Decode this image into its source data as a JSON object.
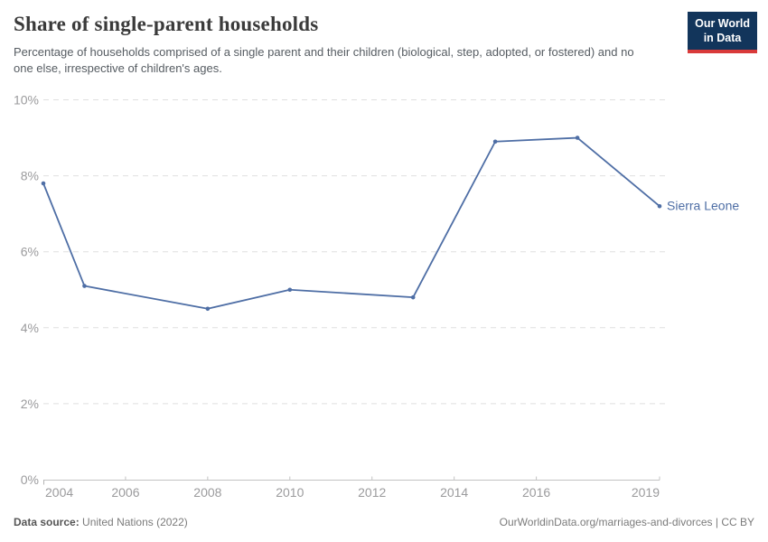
{
  "header": {
    "title": "Share of single-parent households",
    "subtitle": "Percentage of households comprised of a single parent and their children (biological, step, adopted, or fostered) and no one else, irrespective of children's ages."
  },
  "logo": {
    "line1": "Our World",
    "line2": "in Data",
    "bg_color": "#12355b",
    "bar_color": "#d93a3a"
  },
  "chart_data": {
    "type": "line",
    "title": "Share of single-parent households",
    "series": [
      {
        "name": "Sierra Leone",
        "color": "#4e6ea5",
        "x": [
          2004,
          2005,
          2008,
          2010,
          2013,
          2015,
          2017,
          2019
        ],
        "values": [
          7.8,
          5.1,
          4.5,
          5.0,
          4.8,
          8.9,
          9.0,
          7.2
        ]
      }
    ],
    "x_ticks": [
      2004,
      2006,
      2008,
      2010,
      2012,
      2014,
      2016,
      2019
    ],
    "y_ticks": [
      0,
      2,
      4,
      6,
      8,
      10
    ],
    "y_tick_format": "{v}%",
    "xlim": [
      2004,
      2019
    ],
    "ylim": [
      0,
      10
    ],
    "grid": "horizontal-dashed",
    "grid_color": "#dfdfdf",
    "axis_color": "#c3c3c3",
    "tick_label_color": "#9b9b9d",
    "legend_position": "end-of-line-label"
  },
  "footer": {
    "source_label": "Data source:",
    "source_value": "United Nations (2022)",
    "link": "OurWorldinData.org/marriages-and-divorces | CC BY"
  }
}
